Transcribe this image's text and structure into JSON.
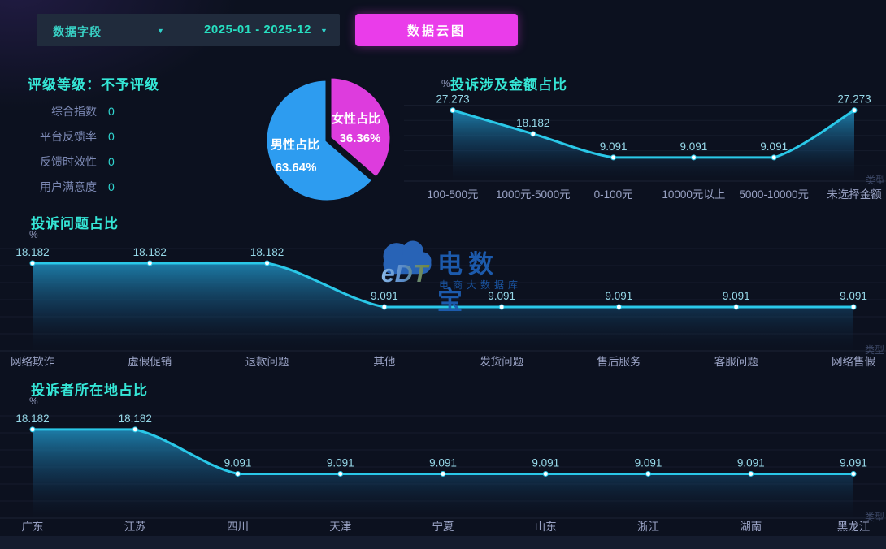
{
  "toolbar": {
    "field_dropdown_label": "数据字段",
    "date_range_value": "2025-01 - 2025-12",
    "cloud_button_label": "数据云图",
    "caret_icon": "▼"
  },
  "rating_panel": {
    "title": "评级等级：不予评级",
    "metrics": [
      {
        "label": "综合指数",
        "value": "0"
      },
      {
        "label": "平台反馈率",
        "value": "0"
      },
      {
        "label": "反馈时效性",
        "value": "0"
      },
      {
        "label": "用户满意度",
        "value": "0"
      }
    ]
  },
  "watermark": {
    "logo_text": "eDT",
    "title": "电数宝",
    "subtitle": "电商大数据库"
  },
  "colors": {
    "background": "#0c111f",
    "accent_cyan": "#35e6d6",
    "line_cyan": "#2ac8e8",
    "button_magenta": "#ea3cea",
    "pie_male_blue": "#2d9cf0",
    "pie_female_magenta": "#dd3cdd"
  },
  "chart_data": [
    {
      "id": "gender_pie",
      "type": "pie",
      "slices": [
        {
          "label": "男性占比",
          "value": 63.64,
          "display": "63.64%",
          "color": "#2d9cf0"
        },
        {
          "label": "女性占比",
          "value": 36.36,
          "display": "36.36%",
          "color": "#dd3cdd"
        }
      ],
      "legend_position": "inside"
    },
    {
      "id": "amount",
      "type": "area",
      "title": "投诉涉及金额占比",
      "ylabel": "%",
      "xlabel": "类型",
      "categories": [
        "100-500元",
        "1000元-5000元",
        "0-100元",
        "10000元以上",
        "5000-10000元",
        "未选择金额"
      ],
      "values": [
        27.273,
        18.182,
        9.091,
        9.091,
        9.091,
        27.273
      ],
      "ylim": [
        0,
        30
      ],
      "grid": true,
      "smooth": true,
      "legend_position": "none"
    },
    {
      "id": "problems",
      "type": "area",
      "title": "投诉问题占比",
      "ylabel": "%",
      "xlabel": "类型",
      "categories": [
        "网络欺诈",
        "虚假促销",
        "退款问题",
        "其他",
        "发货问题",
        "售后服务",
        "客服问题",
        "网络售假"
      ],
      "values": [
        18.182,
        18.182,
        18.182,
        9.091,
        9.091,
        9.091,
        9.091,
        9.091
      ],
      "ylim": [
        0,
        25
      ],
      "grid": true,
      "smooth": true,
      "legend_position": "none"
    },
    {
      "id": "locations",
      "type": "area",
      "title": "投诉者所在地占比",
      "ylabel": "%",
      "xlabel": "类型",
      "categories": [
        "广东",
        "江苏",
        "四川",
        "天津",
        "宁夏",
        "山东",
        "浙江",
        "湖南",
        "黑龙江"
      ],
      "values": [
        18.182,
        18.182,
        9.091,
        9.091,
        9.091,
        9.091,
        9.091,
        9.091,
        9.091
      ],
      "ylim": [
        0,
        25
      ],
      "grid": true,
      "smooth": true,
      "legend_position": "none"
    }
  ]
}
